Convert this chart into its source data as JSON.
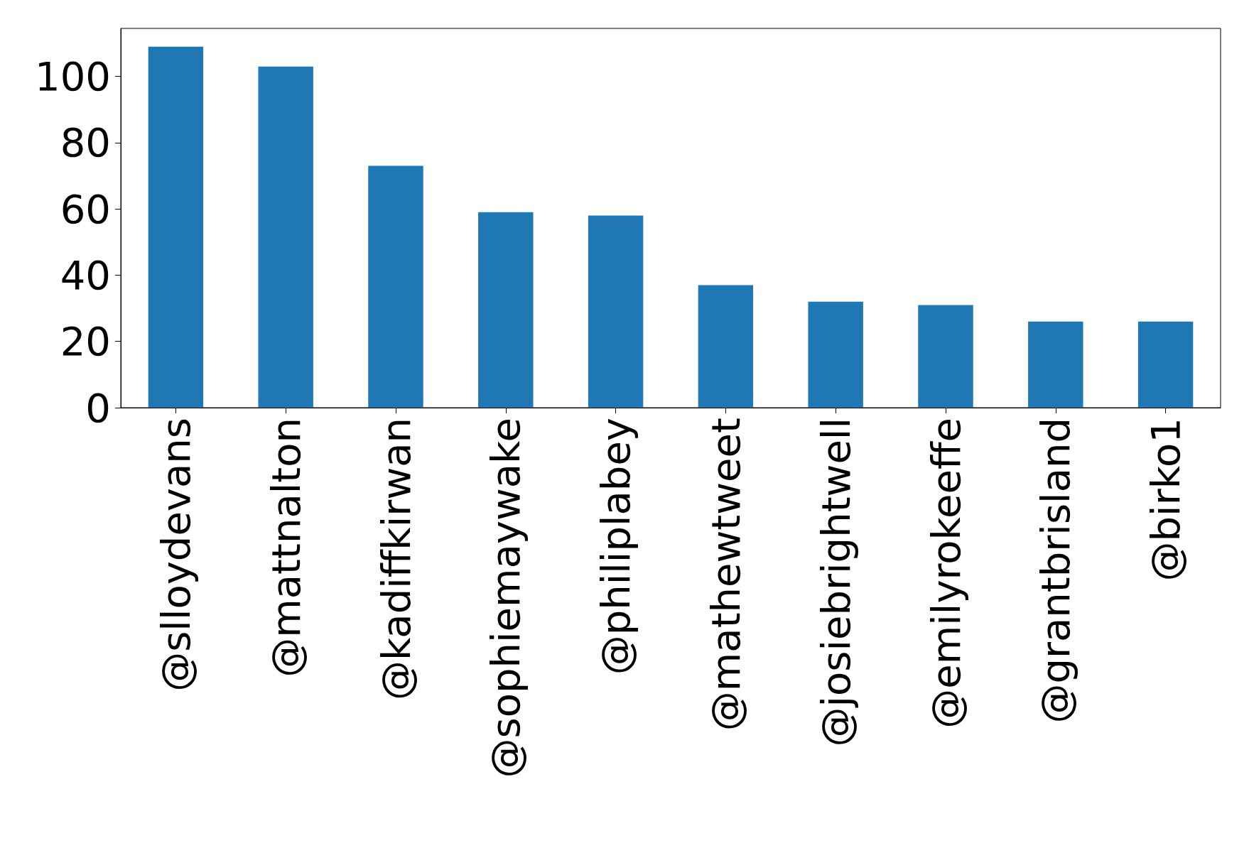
{
  "chart_data": {
    "type": "bar",
    "categories": [
      "@slloydevans",
      "@mattnalton",
      "@kadiffkirwan",
      "@sophiemaywake",
      "@philiplabey",
      "@mathewtweet",
      "@josiebrightwell",
      "@emilyrokeeffe",
      "@grantbrisland",
      "@birko1"
    ],
    "values": [
      109,
      103,
      73,
      59,
      58,
      37,
      32,
      31,
      26,
      26
    ],
    "color": "#1f77b4",
    "ylim": [
      0,
      114.5
    ],
    "yticks": [
      0,
      20,
      40,
      60,
      80,
      100
    ],
    "grid": false
  }
}
